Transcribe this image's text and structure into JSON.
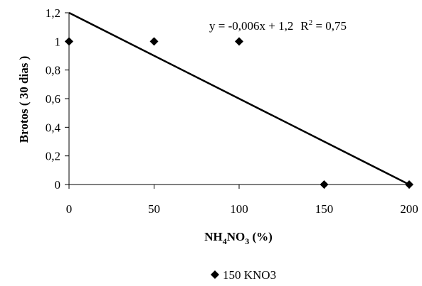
{
  "chart_data": {
    "type": "scatter",
    "xlabel": {
      "prefix": "NH",
      "sub1": "4",
      "mid": "NO",
      "sub2": "3",
      "suffix": " (%)"
    },
    "ylabel": "Brotos ( 30 dias )",
    "xlim": [
      0,
      200
    ],
    "ylim": [
      0,
      1.2
    ],
    "x_ticks": [
      0,
      50,
      100,
      150,
      200
    ],
    "x_tick_labels": [
      "0",
      "50",
      "100",
      "150",
      "200"
    ],
    "y_ticks": [
      0,
      0.2,
      0.4,
      0.6,
      0.8,
      1.0,
      1.2
    ],
    "y_tick_labels": [
      "0",
      "0,2",
      "0,4",
      "0,6",
      "0,8",
      "1",
      "1,2"
    ],
    "grid": false,
    "legend_position": "bottom",
    "series": [
      {
        "name": "150 KNO3",
        "marker": "diamond",
        "color": "#000000",
        "points": [
          {
            "x": 0,
            "y": 1
          },
          {
            "x": 50,
            "y": 1
          },
          {
            "x": 100,
            "y": 1
          },
          {
            "x": 150,
            "y": 0
          },
          {
            "x": 200,
            "y": 0
          }
        ]
      }
    ],
    "trendline": {
      "slope": -0.006,
      "intercept": 1.2,
      "equation_text": "y = -0,006x + 1,2",
      "r2_label": "R",
      "r2_sup": "2",
      "r2_value": " = 0,75"
    }
  }
}
